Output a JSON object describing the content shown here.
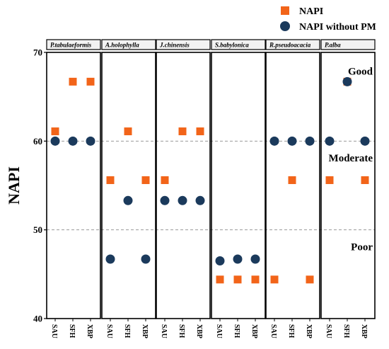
{
  "chart_data": {
    "type": "scatter",
    "ylabel": "NAPI",
    "ylim": [
      40,
      70
    ],
    "y_ticks": [
      "40",
      "50",
      "60",
      "70"
    ],
    "reference_lines": [
      50,
      60
    ],
    "categories": [
      "SAU",
      "SFH",
      "XBP"
    ],
    "facets": [
      "P.tabulaeformis",
      "A.holophylla",
      "J.chinensis",
      "S.babylonica",
      "R.pseudoacacia",
      "P.alba"
    ],
    "zones": [
      {
        "label": "Good",
        "y": 67.5
      },
      {
        "label": "Moderate",
        "y": 57.7
      },
      {
        "label": "Poor",
        "y": 47.7
      }
    ],
    "legend_position": "top-right",
    "series": [
      {
        "name": "NAPI",
        "marker": "square",
        "color": "#f26419",
        "values": [
          [
            61.1,
            66.7,
            66.7
          ],
          [
            55.6,
            61.1,
            55.6
          ],
          [
            55.6,
            61.1,
            61.1
          ],
          [
            44.4,
            44.4,
            44.4
          ],
          [
            44.4,
            55.6,
            44.4
          ],
          [
            55.6,
            66.7,
            55.6
          ]
        ]
      },
      {
        "name": "NAPI without PM",
        "marker": "circle",
        "color": "#1b3a5c",
        "values": [
          [
            60.0,
            60.0,
            60.0
          ],
          [
            46.7,
            53.3,
            46.7
          ],
          [
            53.3,
            53.3,
            53.3
          ],
          [
            46.5,
            46.7,
            46.7
          ],
          [
            60.0,
            60.0,
            60.0
          ],
          [
            60.0,
            66.7,
            60.0
          ]
        ]
      }
    ]
  }
}
